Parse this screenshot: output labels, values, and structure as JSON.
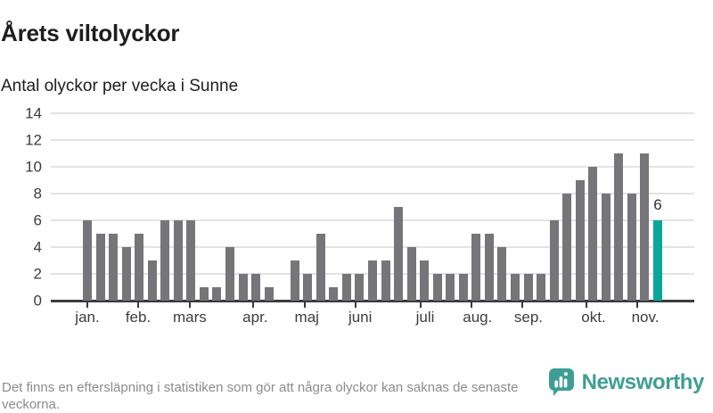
{
  "header": {
    "title": "Årets viltolyckor",
    "subtitle": "Antal olyckor per vecka i Sunne"
  },
  "chart_data": {
    "type": "bar",
    "title": "Årets viltolyckor",
    "subtitle": "Antal olyckor per vecka i Sunne",
    "x_unit": "vecka",
    "values": [
      6,
      5,
      5,
      4,
      5,
      3,
      6,
      6,
      6,
      1,
      1,
      4,
      2,
      2,
      1,
      0,
      3,
      2,
      5,
      1,
      2,
      2,
      3,
      3,
      7,
      4,
      3,
      2,
      2,
      2,
      5,
      5,
      4,
      2,
      2,
      2,
      6,
      8,
      9,
      10,
      8,
      11,
      8,
      11,
      6
    ],
    "highlight_index": 44,
    "highlight_label": "6",
    "y_ticks": [
      0,
      2,
      4,
      6,
      8,
      10,
      12,
      14
    ],
    "ylim": [
      0,
      14
    ],
    "grid": "horizontal",
    "months": [
      {
        "label": "jan.",
        "tick_week": 0,
        "label_week": 0
      },
      {
        "label": "feb.",
        "tick_week": 3.92,
        "label_week": 3.92
      },
      {
        "label": "mars",
        "tick_week": 7.9,
        "label_week": 7.9
      },
      {
        "label": "apr.",
        "tick_week": 12.8,
        "label_week": 12.95
      },
      {
        "label": "maj",
        "tick_week": 16.8,
        "label_week": 16.93
      },
      {
        "label": "juni",
        "tick_week": 20.7,
        "label_week": 21.05
      },
      {
        "label": "juli",
        "tick_week": 25.7,
        "label_week": 26.06
      },
      {
        "label": "aug.",
        "tick_week": 29.6,
        "label_week": 30.1
      },
      {
        "label": "sep.",
        "tick_week": 33.55,
        "label_week": 34.03
      },
      {
        "label": "okt.",
        "tick_week": 38.5,
        "label_week": 39.05
      },
      {
        "label": "nov.",
        "tick_week": 42.45,
        "label_week": 43.04
      }
    ],
    "colors": {
      "bar": "#75757a",
      "highlight": "#0aa69b",
      "gridline": "#e3e3e3",
      "axis": "#3b3b3b",
      "label": "#3d3d3d"
    }
  },
  "footer": {
    "note": "Det finns en eftersläpning i statistiken som gör att några olyckor kan saknas de senaste veckorna.",
    "brand": "Newsworthy",
    "brand_color": "#3f9e94",
    "logo_icon": "newsworthy-speech-bubble-barchart-icon"
  }
}
